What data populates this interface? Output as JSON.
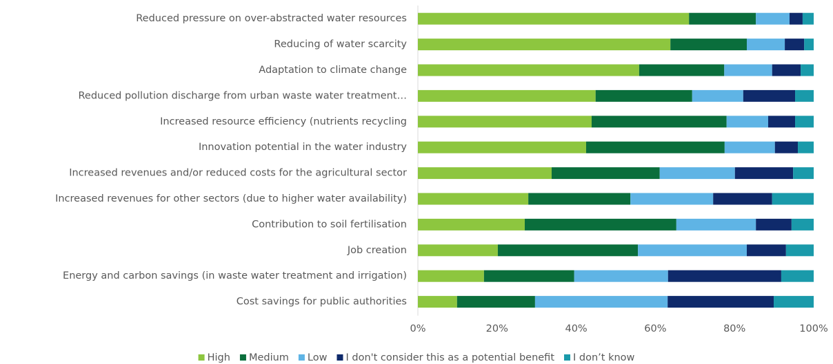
{
  "chart_data": {
    "type": "stacked_barh",
    "categories": [
      "Reduced pressure on over-abstracted water resources",
      "Reducing of water scarcity",
      "Adaptation to climate change",
      "Reduced pollution discharge from urban waste water treatment…",
      "Increased resource efficiency (nutrients recycling",
      "Innovation potential in the water industry",
      "Increased revenues and/or reduced costs for the agricultural sector",
      "Increased revenues for other sectors (due to higher water availability)",
      "Contribution to soil fertilisation",
      "Job creation",
      "Energy and carbon savings (in waste water treatment and irrigation)",
      "Cost savings for public authorities"
    ],
    "series": [
      {
        "name": "High",
        "color": "#8dc63f",
        "values": [
          68.5,
          63.8,
          55.9,
          44.9,
          43.9,
          42.5,
          33.8,
          27.9,
          27.0,
          20.2,
          16.7,
          9.9
        ]
      },
      {
        "name": "Medium",
        "color": "#0a6e3c",
        "values": [
          16.9,
          19.3,
          21.5,
          24.4,
          34.1,
          35.0,
          27.3,
          25.8,
          38.3,
          35.4,
          22.8,
          19.7
        ]
      },
      {
        "name": "Low",
        "color": "#5fb4e5",
        "values": [
          8.5,
          9.6,
          12.1,
          12.9,
          10.5,
          12.7,
          19.0,
          20.9,
          20.1,
          27.5,
          23.7,
          33.5
        ]
      },
      {
        "name": "I don't consider this as a potential benefit",
        "color": "#0f2a6b",
        "values": [
          3.3,
          4.9,
          7.2,
          13.1,
          6.8,
          5.8,
          14.7,
          14.9,
          9.0,
          9.9,
          28.6,
          26.8
        ]
      },
      {
        "name": "I don’t know",
        "color": "#1a9aaa",
        "values": [
          2.8,
          2.4,
          3.3,
          4.7,
          4.7,
          4.0,
          5.2,
          10.5,
          5.6,
          7.0,
          8.2,
          10.1
        ]
      }
    ],
    "xlim": [
      0,
      100
    ],
    "xticks": [
      {
        "value": 0,
        "label": "0%"
      },
      {
        "value": 20,
        "label": "20%"
      },
      {
        "value": 40,
        "label": "40%"
      },
      {
        "value": 60,
        "label": "60%"
      },
      {
        "value": 80,
        "label": "80%"
      },
      {
        "value": 100,
        "label": "100%"
      }
    ],
    "legend": "bottom"
  }
}
